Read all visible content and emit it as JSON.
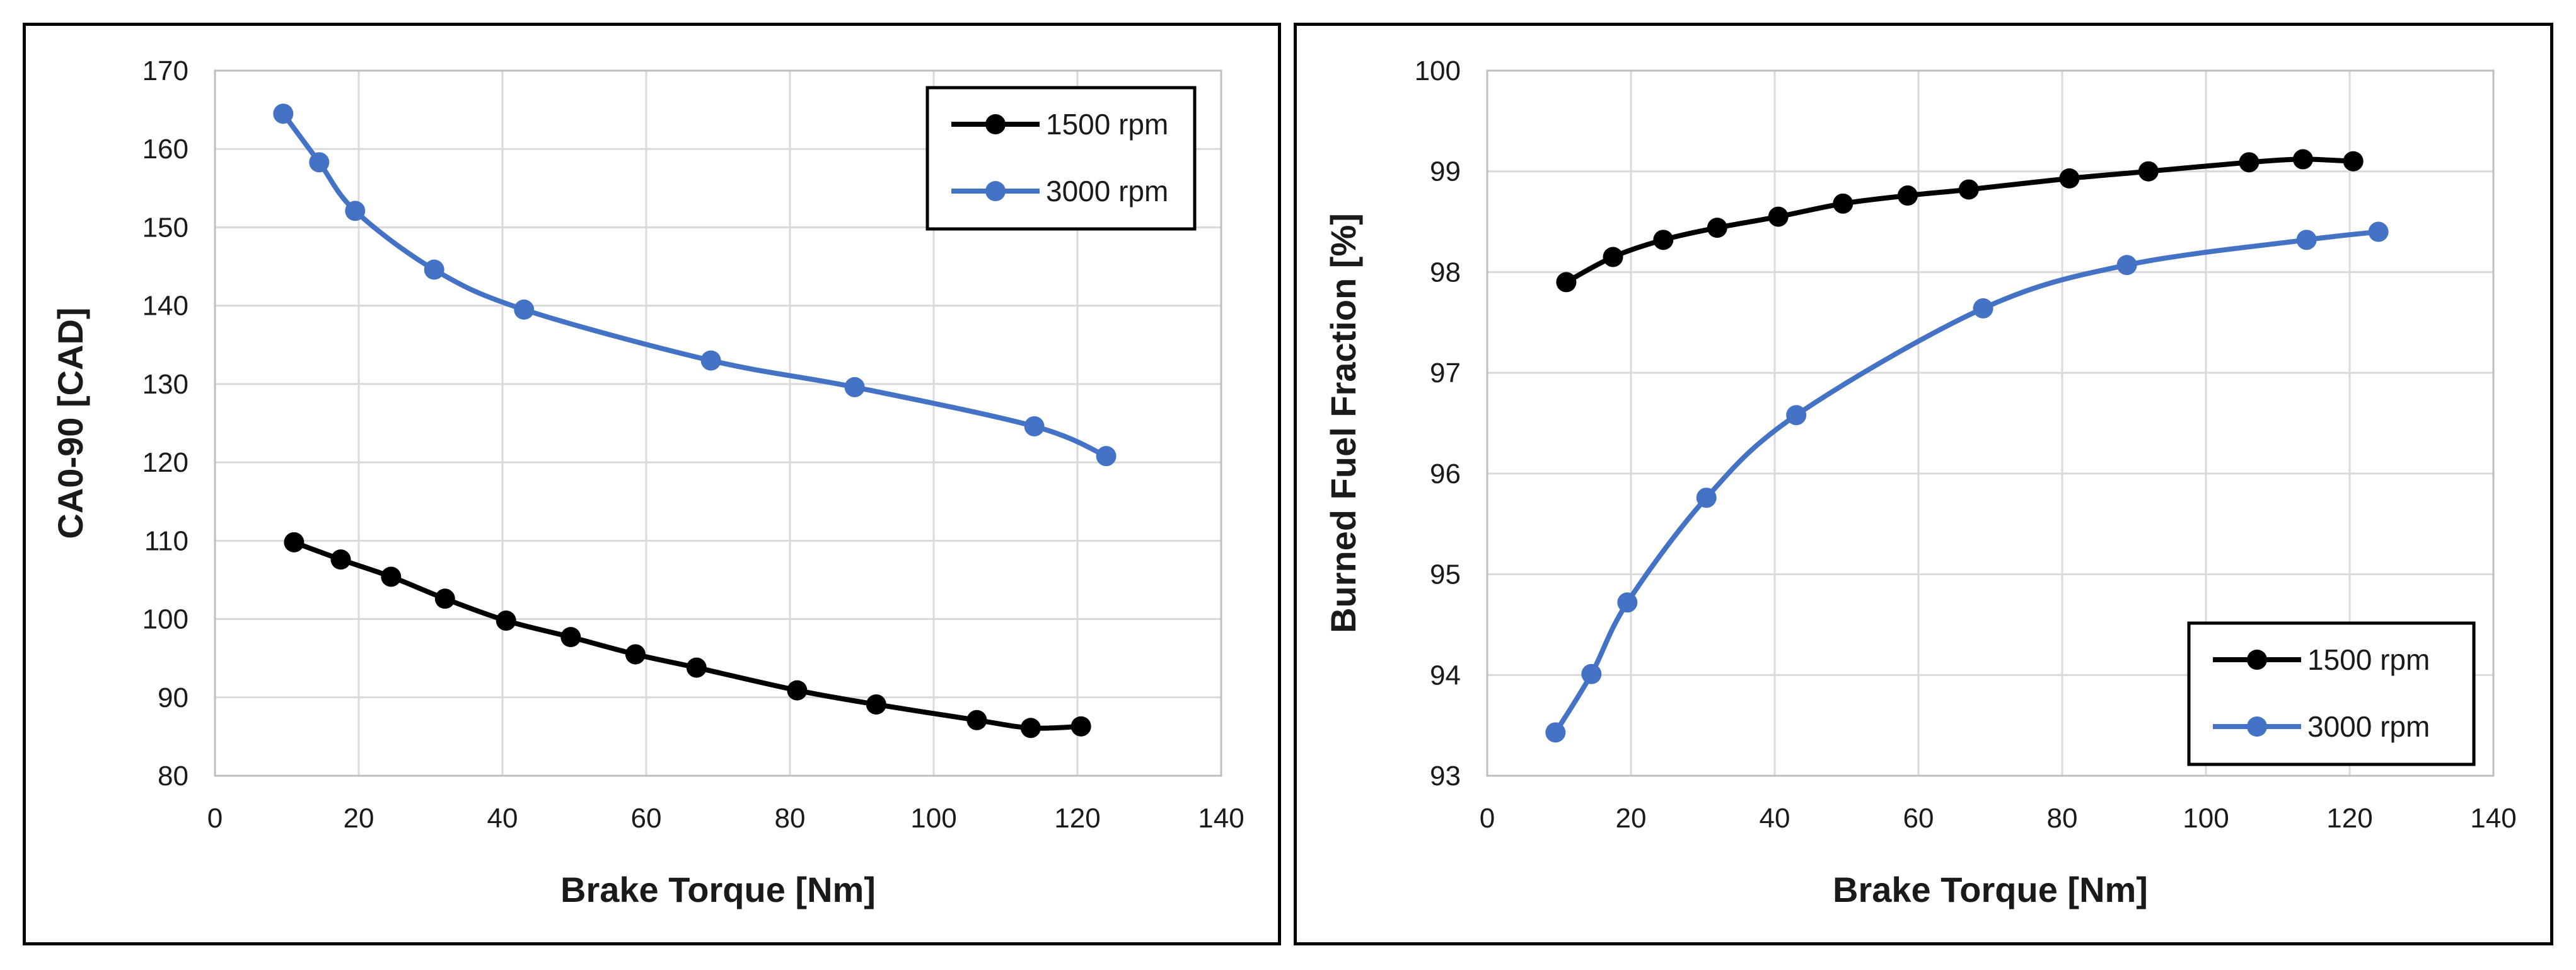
{
  "chart_data": [
    {
      "type": "line",
      "xlabel": "Brake Torque [Nm]",
      "ylabel": "CA0-90 [CAD]",
      "xlim": [
        0,
        140
      ],
      "ylim": [
        80,
        170
      ],
      "xticks": [
        0,
        20,
        40,
        60,
        80,
        100,
        120,
        140
      ],
      "yticks": [
        80,
        90,
        100,
        110,
        120,
        130,
        140,
        150,
        160,
        170
      ],
      "grid": true,
      "legend_position": "top-right",
      "series": [
        {
          "name": "1500 rpm",
          "color": "#000000",
          "x": [
            11,
            17.5,
            24.5,
            32,
            40.5,
            49.5,
            58.5,
            67,
            81,
            92,
            106,
            113.5,
            120.5
          ],
          "y": [
            109.8,
            107.6,
            105.4,
            102.6,
            99.8,
            97.7,
            95.5,
            93.8,
            90.9,
            89.1,
            87.1,
            86.1,
            86.3
          ]
        },
        {
          "name": "3000 rpm",
          "color": "#4472C4",
          "x": [
            9.5,
            14.5,
            19.5,
            30.5,
            43,
            69,
            89,
            114,
            124
          ],
          "y": [
            164.5,
            158.3,
            152.1,
            144.6,
            139.5,
            133,
            129.6,
            124.6,
            120.8
          ]
        }
      ]
    },
    {
      "type": "line",
      "xlabel": "Brake Torque [Nm]",
      "ylabel": "Burned Fuel Fraction [%]",
      "xlim": [
        0,
        140
      ],
      "ylim": [
        93,
        100
      ],
      "xticks": [
        0,
        20,
        40,
        60,
        80,
        100,
        120,
        140
      ],
      "yticks": [
        93,
        94,
        95,
        96,
        97,
        98,
        99,
        100
      ],
      "grid": true,
      "legend_position": "bottom-right",
      "series": [
        {
          "name": "1500 rpm",
          "color": "#000000",
          "x": [
            11,
            17.5,
            24.5,
            32,
            40.5,
            49.5,
            58.5,
            67,
            81,
            92,
            106,
            113.5,
            120.5
          ],
          "y": [
            97.9,
            98.15,
            98.32,
            98.44,
            98.55,
            98.68,
            98.76,
            98.82,
            98.93,
            99.0,
            99.09,
            99.12,
            99.1
          ]
        },
        {
          "name": "3000 rpm",
          "color": "#4472C4",
          "x": [
            9.5,
            14.5,
            19.5,
            30.5,
            43,
            69,
            89,
            114,
            124
          ],
          "y": [
            93.43,
            94.01,
            94.72,
            95.76,
            96.58,
            97.64,
            98.07,
            98.32,
            98.4
          ]
        }
      ]
    }
  ]
}
